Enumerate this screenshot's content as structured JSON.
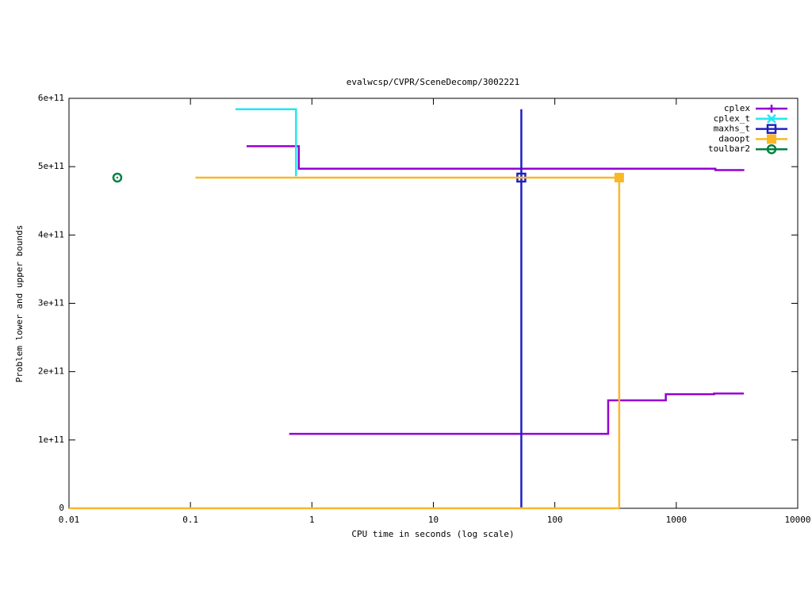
{
  "chart_data": {
    "type": "step-line",
    "title": "evalwcsp/CVPR/SceneDecomp/3002221",
    "x_label": "CPU time in seconds (log scale)",
    "y_label": "Problem lower and upper bounds",
    "x_log": true,
    "xlim": [
      0.01,
      10000
    ],
    "xticks": [
      0.01,
      0.1,
      1,
      10,
      100,
      1000,
      10000
    ],
    "ylim": [
      0,
      600000000000
    ],
    "yticks": [
      0,
      {
        "value": 100000000000,
        "label": "1e+11"
      },
      {
        "value": 200000000000,
        "label": "2e+11"
      },
      {
        "value": 300000000000,
        "label": "3e+11"
      },
      {
        "value": 400000000000,
        "label": "4e+11"
      },
      {
        "value": 500000000000,
        "label": "5e+11"
      },
      {
        "value": 600000000000,
        "label": "6e+11"
      }
    ],
    "legend": "top-right",
    "series": [
      {
        "name": "cplex",
        "color": "#9400d3",
        "marker": "plus",
        "segments": [
          {
            "x": [
              0.29,
              0.78,
              2100,
              3630
            ],
            "values": [
              530000000000,
              497000000000,
              495000000000,
              495000000000
            ]
          },
          {
            "x": [
              0.65,
              275,
              820,
              2050,
              3600
            ],
            "values": [
              109000000000,
              158000000000,
              167000000000,
              168000000000,
              168000000000
            ]
          }
        ]
      },
      {
        "name": "cplex_t",
        "color": "#20e8f0",
        "marker": "cross",
        "segments": [
          {
            "x": [
              0.235,
              0.74
            ],
            "values": [
              584000000000,
              486000000000
            ]
          }
        ]
      },
      {
        "name": "maxhs_t",
        "color": "#2020c0",
        "marker": "open-square",
        "segments": [
          {
            "x": [
              53,
              53
            ],
            "values": [
              0,
              584000000000
            ]
          }
        ],
        "markers": {
          "x": [
            53
          ],
          "values": [
            484000000000
          ]
        }
      },
      {
        "name": "daoopt",
        "color": "#f8b828",
        "marker": "filled-square",
        "segments": [
          {
            "x": [
              0.11,
              339
            ],
            "values": [
              484000000000,
              0
            ]
          },
          {
            "x": [
              0.01,
              339
            ],
            "values": [
              0,
              0
            ]
          }
        ],
        "markers": {
          "x": [
            339
          ],
          "values": [
            484000000000
          ]
        }
      },
      {
        "name": "toulbar2",
        "color": "#008040",
        "marker": "dot-circle",
        "segments": [],
        "markers": {
          "x": [
            0.025
          ],
          "values": [
            484000000000
          ]
        }
      }
    ]
  }
}
